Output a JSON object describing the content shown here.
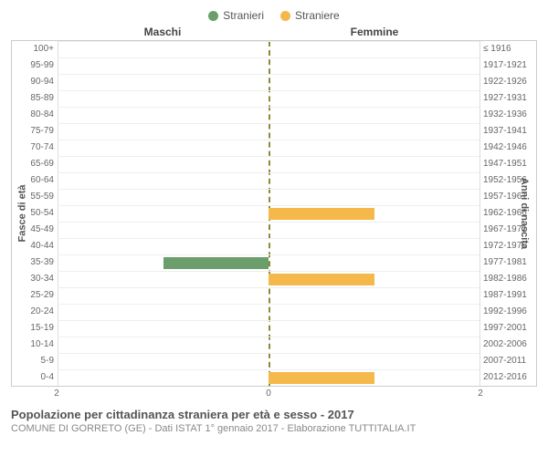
{
  "colors": {
    "male": "#6b9e6b",
    "female": "#f4b94a",
    "grid": "#dddddd",
    "centerline": "#8a8a3a",
    "text": "#555555",
    "background": "#ffffff"
  },
  "legend": [
    {
      "label": "Stranieri",
      "colorKey": "male"
    },
    {
      "label": "Straniere",
      "colorKey": "female"
    }
  ],
  "header": {
    "left": "Maschi",
    "right": "Femmine"
  },
  "axis": {
    "left_title": "Fasce di età",
    "right_title": "Anni di nascita",
    "x_max": 2,
    "x_ticks": [
      2,
      0,
      2
    ],
    "left_labels": [
      "100+",
      "95-99",
      "90-94",
      "85-89",
      "80-84",
      "75-79",
      "70-74",
      "65-69",
      "60-64",
      "55-59",
      "50-54",
      "45-49",
      "40-44",
      "35-39",
      "30-34",
      "25-29",
      "20-24",
      "15-19",
      "10-14",
      "5-9",
      "0-4"
    ],
    "right_labels": [
      "≤ 1916",
      "1917-1921",
      "1922-1926",
      "1927-1931",
      "1932-1936",
      "1937-1941",
      "1942-1946",
      "1947-1951",
      "1952-1956",
      "1957-1961",
      "1962-1966",
      "1967-1971",
      "1972-1976",
      "1977-1981",
      "1982-1986",
      "1987-1991",
      "1992-1996",
      "1997-2001",
      "2002-2006",
      "2007-2011",
      "2012-2016"
    ]
  },
  "data": {
    "male": [
      0,
      0,
      0,
      0,
      0,
      0,
      0,
      0,
      0,
      0,
      0,
      0,
      0,
      1,
      0,
      0,
      0,
      0,
      0,
      0,
      0
    ],
    "female": [
      0,
      0,
      0,
      0,
      0,
      0,
      0,
      0,
      0,
      0,
      1,
      0,
      0,
      0,
      1,
      0,
      0,
      0,
      0,
      0,
      1
    ]
  },
  "caption": {
    "title": "Popolazione per cittadinanza straniera per età e sesso - 2017",
    "subtitle": "COMUNE DI GORRETO (GE) - Dati ISTAT 1° gennaio 2017 - Elaborazione TUTTITALIA.IT"
  }
}
